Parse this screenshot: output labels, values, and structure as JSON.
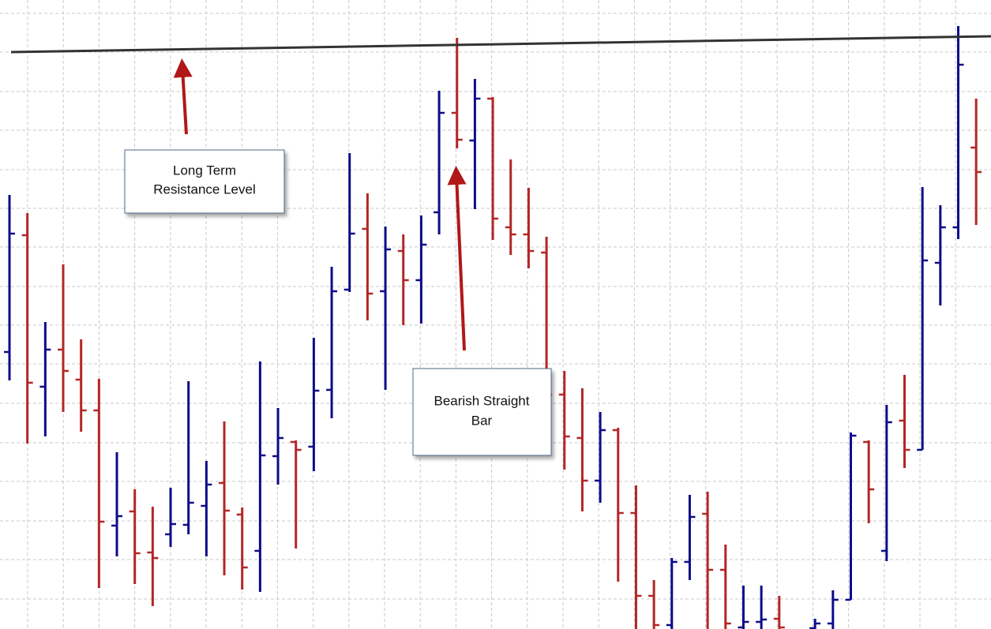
{
  "chart_data": {
    "type": "ohlc",
    "ylim": [
      3,
      800
    ],
    "yticks": [
      783,
      734,
      684,
      635,
      585,
      536,
      487,
      437,
      388,
      339,
      289,
      239,
      190,
      140,
      91,
      41
    ],
    "grid": true,
    "up_color": "#0c0c8a",
    "down_color": "#b32626",
    "open": [
      354,
      502,
      310,
      357,
      319,
      280,
      134,
      152,
      100,
      123,
      135,
      159,
      188,
      148,
      102,
      222,
      240,
      234,
      306,
      433,
      510,
      431,
      482,
      445,
      531,
      657,
      622,
      675,
      512,
      503,
      480,
      300,
      245,
      191,
      255,
      150,
      45,
      8,
      88,
      149,
      78,
      5,
      12,
      16,
      null,
      4,
      10,
      40,
      240,
      102,
      267,
      230,
      467,
      512,
      613
    ],
    "high": [
      553,
      530,
      392,
      465,
      370,
      320,
      227,
      180,
      158,
      182,
      317,
      216,
      266,
      157,
      342,
      283,
      242,
      372,
      462,
      606,
      555,
      513,
      503,
      527,
      685,
      752,
      700,
      677,
      598,
      562,
      500,
      330,
      308,
      278,
      258,
      185,
      65,
      93,
      173,
      177,
      110,
      58,
      58,
      45,
      null,
      16,
      52,
      252,
      242,
      287,
      325,
      563,
      540,
      767,
      675
    ],
    "low": [
      318,
      238,
      247,
      278,
      253,
      55,
      95,
      60,
      32,
      107,
      123,
      95,
      71,
      53,
      50,
      186,
      105,
      203,
      270,
      430,
      394,
      306,
      388,
      390,
      503,
      612,
      535,
      496,
      477,
      460,
      247,
      205,
      152,
      163,
      63,
      3,
      3,
      3,
      65,
      3,
      3,
      3,
      3,
      3,
      null,
      3,
      3,
      40,
      137,
      89,
      207,
      230,
      413,
      497,
      515
    ],
    "close": [
      504,
      315,
      357,
      330,
      280,
      139,
      146,
      99,
      93,
      136,
      163,
      186,
      153,
      81,
      223,
      245,
      230,
      305,
      431,
      504,
      428,
      484,
      445,
      490,
      657,
      623,
      675,
      523,
      503,
      482,
      300,
      247,
      191,
      255,
      150,
      45,
      8,
      88,
      145,
      78,
      10,
      12,
      15,
      5,
      null,
      10,
      40,
      248,
      180,
      265,
      230,
      470,
      512,
      718,
      582
    ],
    "resistance": [
      734,
      754
    ],
    "annotations": [
      [
        "Long Term",
        "Resistance Level"
      ],
      [
        "Bearish Straight",
        "Bar"
      ]
    ]
  }
}
